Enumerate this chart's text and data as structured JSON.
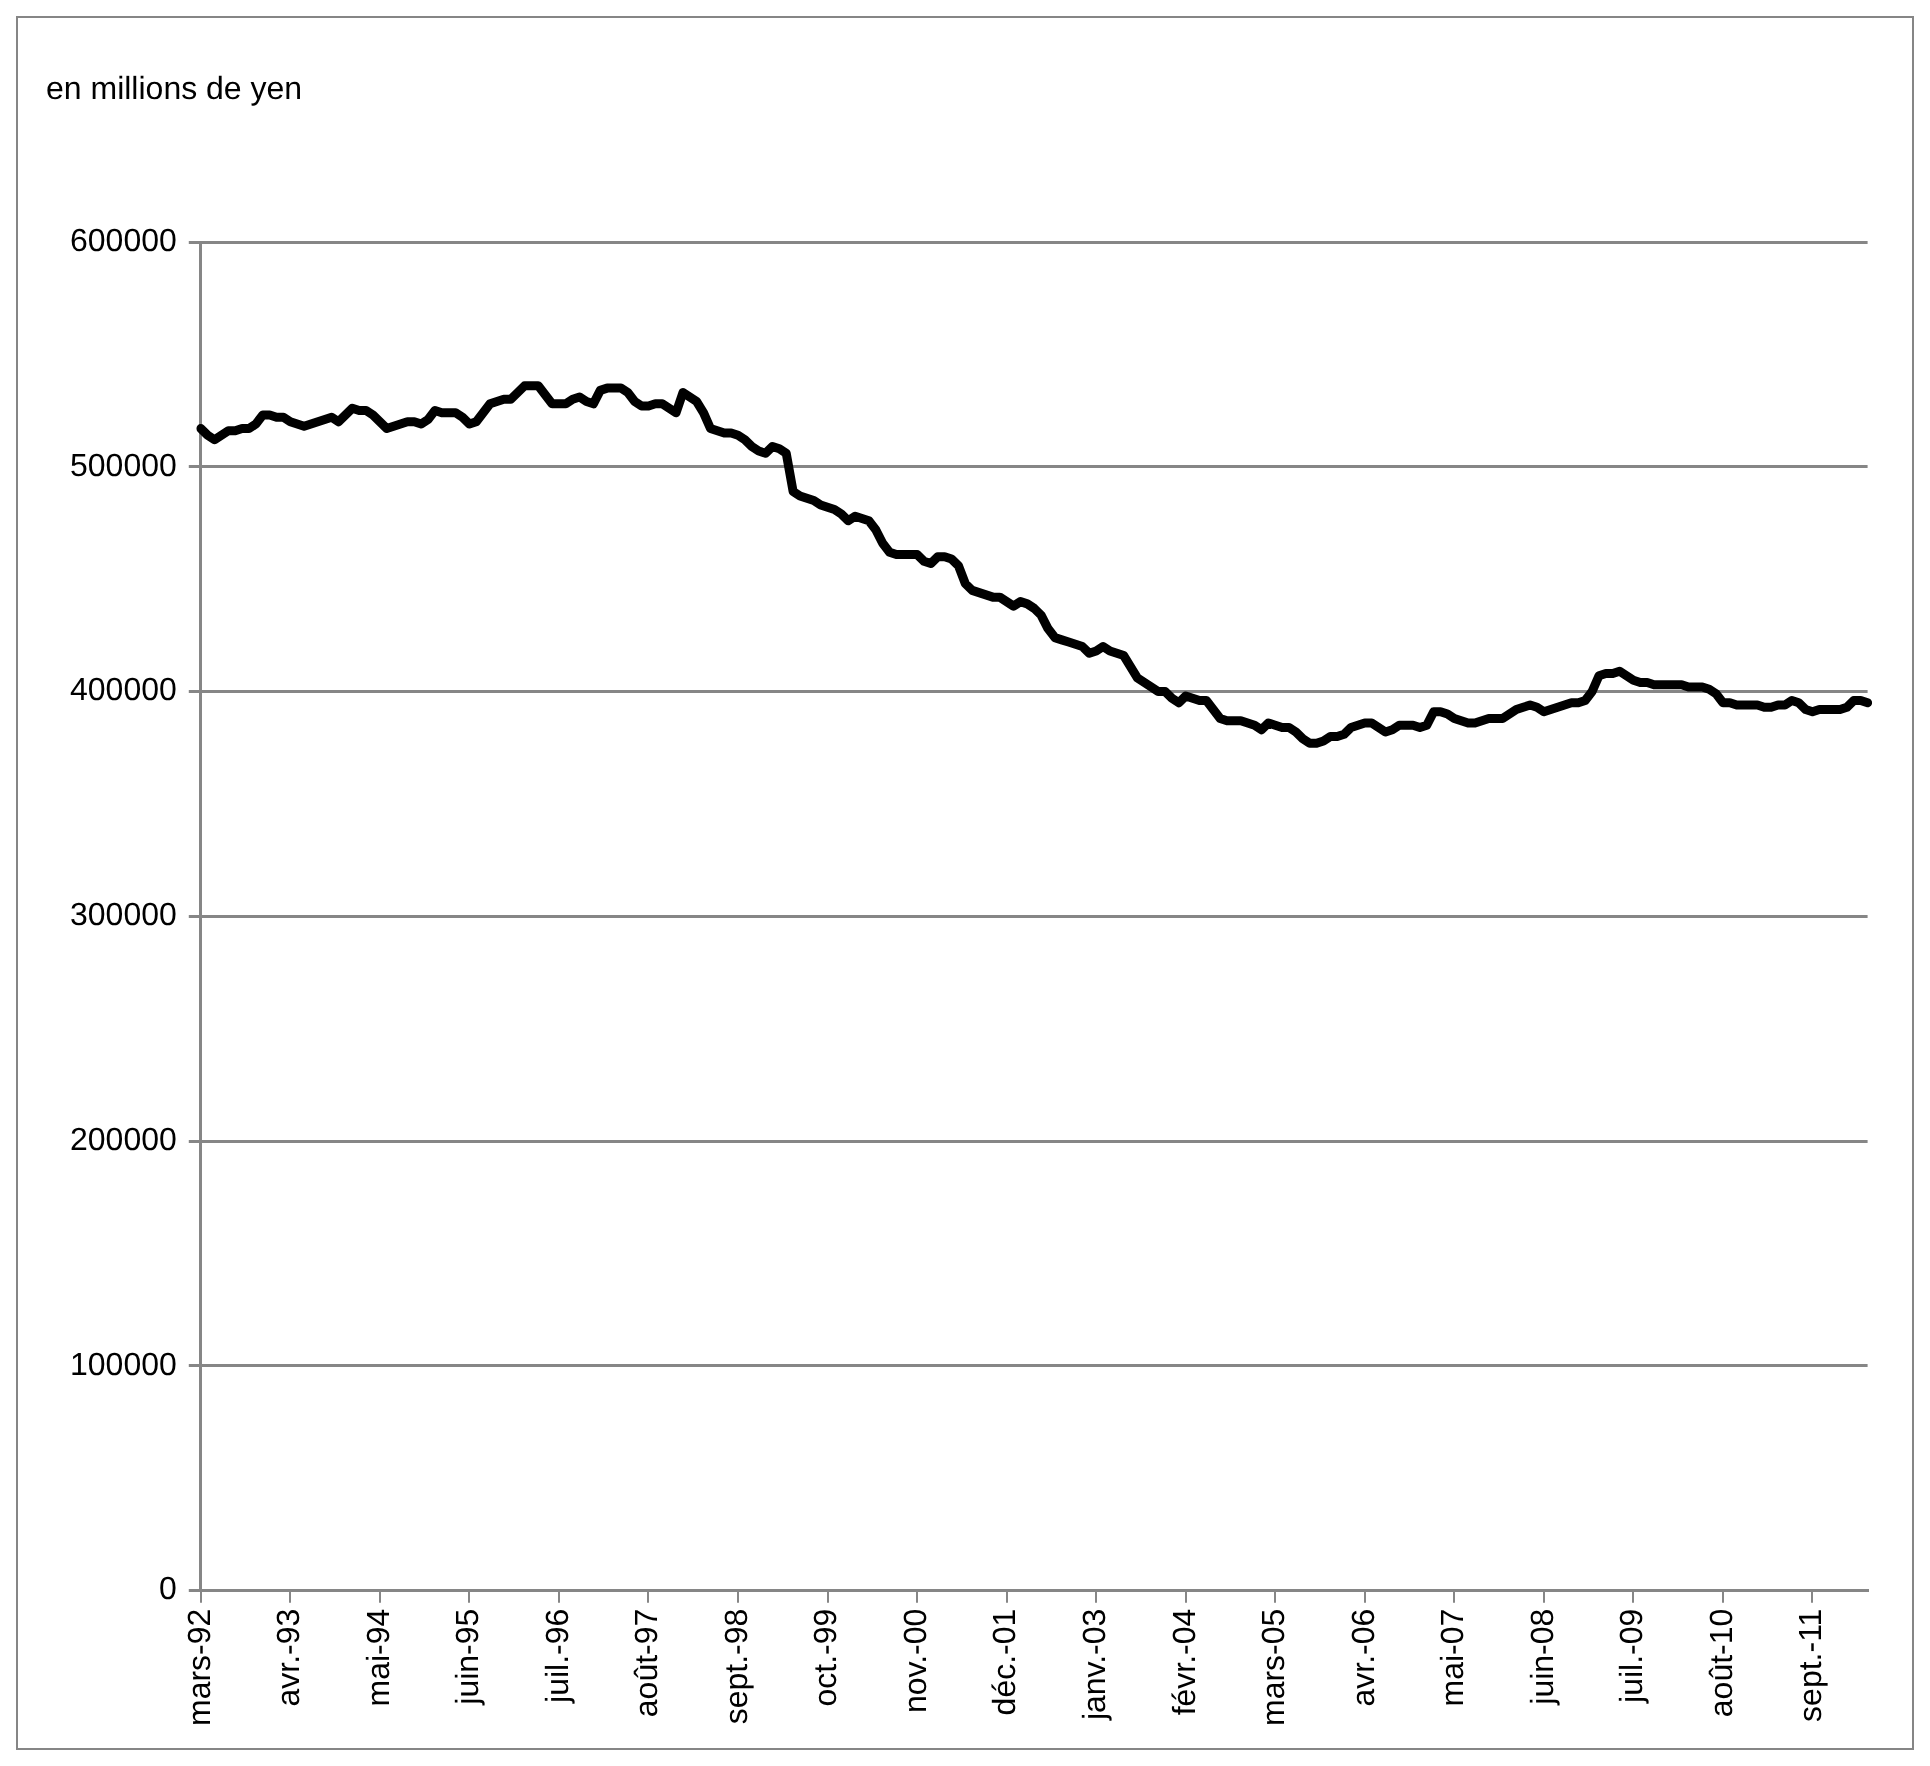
{
  "chart_data": {
    "type": "line",
    "ylabel": "en millions de yen",
    "categories": [
      "mars-92",
      null,
      null,
      null,
      null,
      null,
      null,
      null,
      null,
      null,
      null,
      null,
      null,
      "avr.-93",
      null,
      null,
      null,
      null,
      null,
      null,
      null,
      null,
      null,
      null,
      null,
      null,
      "mai-94",
      null,
      null,
      null,
      null,
      null,
      null,
      null,
      null,
      null,
      null,
      null,
      null,
      "juin-95",
      null,
      null,
      null,
      null,
      null,
      null,
      null,
      null,
      null,
      null,
      null,
      null,
      "juil.-96",
      null,
      null,
      null,
      null,
      null,
      null,
      null,
      null,
      null,
      null,
      null,
      null,
      "août-97",
      null,
      null,
      null,
      null,
      null,
      null,
      null,
      null,
      null,
      null,
      null,
      null,
      "sept.-98",
      null,
      null,
      null,
      null,
      null,
      null,
      null,
      null,
      null,
      null,
      null,
      null,
      "oct.-99",
      null,
      null,
      null,
      null,
      null,
      null,
      null,
      null,
      null,
      null,
      null,
      null,
      "nov.-00",
      null,
      null,
      null,
      null,
      null,
      null,
      null,
      null,
      null,
      null,
      null,
      null,
      "déc.-01",
      null,
      null,
      null,
      null,
      null,
      null,
      null,
      null,
      null,
      null,
      null,
      null,
      "janv.-03",
      null,
      null,
      null,
      null,
      null,
      null,
      null,
      null,
      null,
      null,
      null,
      null,
      "févr.-04",
      null,
      null,
      null,
      null,
      null,
      null,
      null,
      null,
      null,
      null,
      null,
      null,
      "mars-05",
      null,
      null,
      null,
      null,
      null,
      null,
      null,
      null,
      null,
      null,
      null,
      null,
      "avr.-06",
      null,
      null,
      null,
      null,
      null,
      null,
      null,
      null,
      null,
      null,
      null,
      null,
      "mai-07",
      null,
      null,
      null,
      null,
      null,
      null,
      null,
      null,
      null,
      null,
      null,
      null,
      "juin-08",
      null,
      null,
      null,
      null,
      null,
      null,
      null,
      null,
      null,
      null,
      null,
      null,
      "juil.-09",
      null,
      null,
      null,
      null,
      null,
      null,
      null,
      null,
      null,
      null,
      null,
      null,
      "août-10",
      null,
      null,
      null,
      null,
      null,
      null,
      null,
      null,
      null,
      null,
      null,
      null,
      "sept.-11",
      null,
      null,
      null,
      null,
      null,
      null,
      null,
      null
    ],
    "series": [
      {
        "color": "#000000",
        "values": [
          517000,
          514000,
          512000,
          514000,
          516000,
          516000,
          517000,
          517000,
          519000,
          523000,
          523000,
          522000,
          522000,
          520000,
          519000,
          518000,
          519000,
          520000,
          521000,
          522000,
          520000,
          523000,
          526000,
          525000,
          525000,
          523000,
          520000,
          517000,
          518000,
          519000,
          520000,
          520000,
          519000,
          521000,
          525000,
          524000,
          524000,
          524000,
          522000,
          519000,
          520000,
          524000,
          528000,
          529000,
          530000,
          530000,
          533000,
          536000,
          536000,
          536000,
          532000,
          528000,
          528000,
          528000,
          530000,
          531000,
          529000,
          528000,
          534000,
          535000,
          535000,
          535000,
          533000,
          529000,
          527000,
          527000,
          528000,
          528000,
          526000,
          524000,
          533000,
          531000,
          529000,
          524000,
          517000,
          516000,
          515000,
          515000,
          514000,
          512000,
          509000,
          507000,
          506000,
          509000,
          508000,
          506000,
          489000,
          487000,
          486000,
          485000,
          483000,
          482000,
          481000,
          479000,
          476000,
          478000,
          477000,
          476000,
          472000,
          466000,
          462000,
          461000,
          461000,
          461000,
          461000,
          458000,
          457000,
          460000,
          460000,
          459000,
          456000,
          448000,
          445000,
          444000,
          443000,
          442000,
          442000,
          440000,
          438000,
          440000,
          439000,
          437000,
          434000,
          428000,
          424000,
          423000,
          422000,
          421000,
          420000,
          417000,
          418000,
          420000,
          418000,
          417000,
          416000,
          411000,
          406000,
          404000,
          402000,
          400000,
          400000,
          397000,
          395000,
          398000,
          397000,
          396000,
          396000,
          392000,
          388000,
          387000,
          387000,
          387000,
          386000,
          385000,
          383000,
          386000,
          385000,
          384000,
          384000,
          382000,
          379000,
          377000,
          377000,
          378000,
          380000,
          380000,
          381000,
          384000,
          385000,
          386000,
          386000,
          384000,
          382000,
          383000,
          385000,
          385000,
          385000,
          384000,
          385000,
          391000,
          391000,
          390000,
          388000,
          387000,
          386000,
          386000,
          387000,
          388000,
          388000,
          388000,
          390000,
          392000,
          393000,
          394000,
          393000,
          391000,
          392000,
          393000,
          394000,
          395000,
          395000,
          396000,
          400000,
          407000,
          408000,
          408000,
          409000,
          407000,
          405000,
          404000,
          404000,
          403000,
          403000,
          403000,
          403000,
          403000,
          402000,
          402000,
          402000,
          401000,
          399000,
          395000,
          395000,
          394000,
          394000,
          394000,
          394000,
          393000,
          393000,
          394000,
          394000,
          396000,
          395000,
          392000,
          391000,
          392000,
          392000,
          392000,
          392000,
          393000,
          396000,
          396000,
          395000
        ]
      }
    ],
    "ylim": [
      0,
      600000
    ],
    "yticks": [
      0,
      100000,
      200000,
      300000,
      400000,
      500000,
      600000
    ],
    "grid": "y",
    "legend": false,
    "marker": "none",
    "line_style": "solid"
  }
}
